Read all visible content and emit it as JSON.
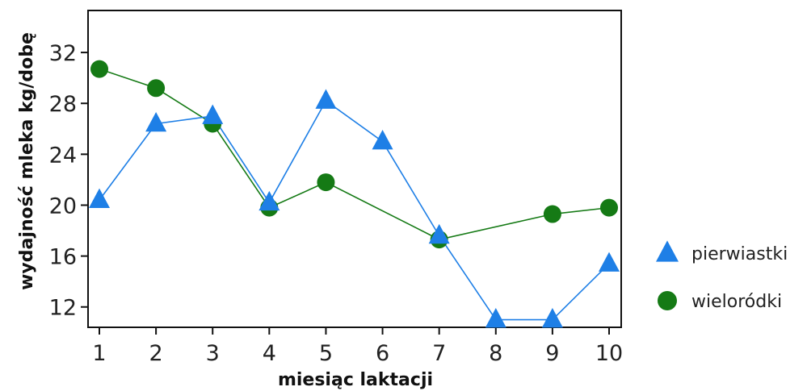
{
  "chart_data": {
    "type": "line",
    "title": "",
    "xlabel": "miesiąc laktacji",
    "ylabel": "wydajność mleka kg/dobę",
    "x": [
      1,
      2,
      3,
      4,
      5,
      6,
      7,
      8,
      9,
      10
    ],
    "x_tick_labels": [
      "1",
      "2",
      "3",
      "4",
      "5",
      "6",
      "7",
      "8",
      "9",
      "10"
    ],
    "y_tick_values": [
      12,
      16,
      20,
      24,
      28,
      32
    ],
    "y_tick_labels": [
      "12",
      "16",
      "20",
      "24",
      "28",
      "32"
    ],
    "xlim": [
      0.95,
      10.0
    ],
    "ylim": [
      10.4,
      35.3
    ],
    "grid": false,
    "legend_position": "right",
    "series": [
      {
        "name": "pierwiastki",
        "color": "#1E7FE6",
        "marker": "triangle",
        "values": [
          20.4,
          26.4,
          27.0,
          20.2,
          28.2,
          25.0,
          17.6,
          11.0,
          11.0,
          15.4
        ]
      },
      {
        "name": "wieloródki",
        "color": "#157A15",
        "marker": "circle",
        "values": [
          30.7,
          29.2,
          26.4,
          19.8,
          21.8,
          null,
          17.3,
          null,
          19.3,
          19.8
        ]
      }
    ]
  }
}
